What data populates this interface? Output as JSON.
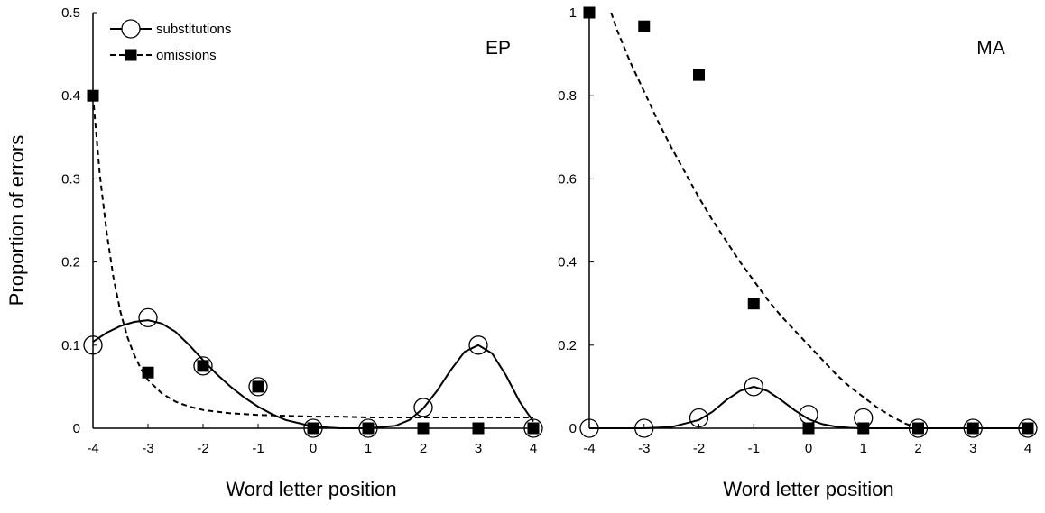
{
  "chart_data": [
    {
      "type": "scatter",
      "title": "",
      "panel_label": "EP",
      "xlabel": "Word letter position",
      "ylabel": "Proportion of errors",
      "xlim": [
        -4,
        4
      ],
      "ylim": [
        0,
        0.5
      ],
      "x_ticks": [
        "-4",
        "-3",
        "-2",
        "-1",
        "0",
        "1",
        "2",
        "3",
        "4"
      ],
      "y_ticks": [
        "0",
        "0.1",
        "0.2",
        "0.3",
        "0.4",
        "0.5"
      ],
      "legend": {
        "placement": "top-left",
        "entries": [
          "substitutions",
          "omissions"
        ]
      },
      "grid": false,
      "series": [
        {
          "name": "substitutions",
          "marker": "open-circle",
          "fit": "solid",
          "x": [
            -4,
            -3,
            -2,
            -1,
            0,
            1,
            2,
            3,
            4
          ],
          "y": [
            0.1,
            0.133,
            0.075,
            0.05,
            0,
            0,
            0.025,
            0.1,
            0
          ]
        },
        {
          "name": "omissions",
          "marker": "filled-square",
          "fit": "dashed",
          "x": [
            -4,
            -3,
            -2,
            -1,
            0,
            1,
            2,
            3,
            4
          ],
          "y": [
            0.4,
            0.067,
            0.075,
            0.05,
            0,
            0,
            0,
            0,
            0
          ]
        }
      ],
      "fit_curves": {
        "substitutions": {
          "x": [
            -4,
            -3.75,
            -3.5,
            -3.25,
            -3,
            -2.75,
            -2.5,
            -2.25,
            -2,
            -1.75,
            -1.5,
            -1.25,
            -1,
            -0.75,
            -0.5,
            -0.25,
            0,
            0.5,
            1,
            1.5,
            1.75,
            2,
            2.25,
            2.5,
            2.75,
            3,
            3.25,
            3.5,
            3.75,
            4
          ],
          "y": [
            0.104,
            0.115,
            0.123,
            0.128,
            0.13,
            0.126,
            0.116,
            0.1,
            0.082,
            0.065,
            0.05,
            0.037,
            0.026,
            0.017,
            0.01,
            0.006,
            0.002,
            0,
            0,
            0.003,
            0.01,
            0.024,
            0.045,
            0.07,
            0.092,
            0.1,
            0.09,
            0.064,
            0.032,
            0.008
          ]
        },
        "omissions": {
          "x": [
            -4,
            -3.875,
            -3.75,
            -3.625,
            -3.5,
            -3.375,
            -3.25,
            -3.125,
            -3,
            -2.75,
            -2.5,
            -2.25,
            -2,
            -1.75,
            -1.5,
            -1.25,
            -1,
            -0.5,
            0,
            0.5,
            1,
            2,
            3,
            4
          ],
          "y": [
            0.4,
            0.305,
            0.235,
            0.18,
            0.14,
            0.11,
            0.088,
            0.071,
            0.058,
            0.042,
            0.032,
            0.026,
            0.022,
            0.02,
            0.018,
            0.017,
            0.016,
            0.015,
            0.014,
            0.014,
            0.013,
            0.013,
            0.013,
            0.013
          ]
        }
      }
    },
    {
      "type": "scatter",
      "title": "",
      "panel_label": "MA",
      "xlabel": "Word letter position",
      "ylabel": "",
      "xlim": [
        -4,
        4
      ],
      "ylim": [
        0,
        1
      ],
      "x_ticks": [
        "-4",
        "-3",
        "-2",
        "-1",
        "0",
        "1",
        "2",
        "3",
        "4"
      ],
      "y_ticks": [
        "0",
        "0.2",
        "0.4",
        "0.6",
        "0.8",
        "1"
      ],
      "grid": false,
      "series": [
        {
          "name": "substitutions",
          "marker": "open-circle",
          "fit": "solid",
          "x": [
            -4,
            -3,
            -2,
            -1,
            0,
            1,
            2,
            3,
            4
          ],
          "y": [
            0,
            0,
            0.025,
            0.1,
            0.033,
            0.025,
            0,
            0,
            0
          ]
        },
        {
          "name": "omissions",
          "marker": "filled-square",
          "fit": "dashed",
          "x": [
            -4,
            -3,
            -2,
            -1,
            0,
            1,
            2,
            3,
            4
          ],
          "y": [
            1.0,
            0.967,
            0.85,
            0.3,
            0,
            0,
            0,
            0,
            0
          ]
        }
      ],
      "fit_curves": {
        "substitutions": {
          "x": [
            -4,
            -3,
            -2.5,
            -2,
            -1.75,
            -1.5,
            -1.25,
            -1,
            -0.75,
            -0.5,
            -0.25,
            0,
            0.25,
            0.5,
            0.75,
            1,
            1.5,
            2,
            3,
            4
          ],
          "y": [
            0,
            0,
            0.003,
            0.02,
            0.04,
            0.068,
            0.09,
            0.1,
            0.09,
            0.068,
            0.043,
            0.022,
            0.01,
            0.004,
            0.001,
            0,
            0,
            0,
            0,
            0
          ]
        },
        "omissions": {
          "x": [
            -3.6,
            -3.5,
            -3.25,
            -3,
            -2.75,
            -2.5,
            -2.25,
            -2,
            -1.75,
            -1.5,
            -1.25,
            -1,
            -0.75,
            -0.5,
            -0.25,
            0,
            0.25,
            0.5,
            0.75,
            1,
            1.25,
            1.5,
            1.75,
            2
          ],
          "y": [
            1.0,
            0.96,
            0.88,
            0.81,
            0.74,
            0.675,
            0.615,
            0.555,
            0.5,
            0.45,
            0.4,
            0.355,
            0.31,
            0.27,
            0.235,
            0.2,
            0.165,
            0.13,
            0.1,
            0.075,
            0.05,
            0.03,
            0.012,
            0.0
          ]
        }
      }
    }
  ]
}
